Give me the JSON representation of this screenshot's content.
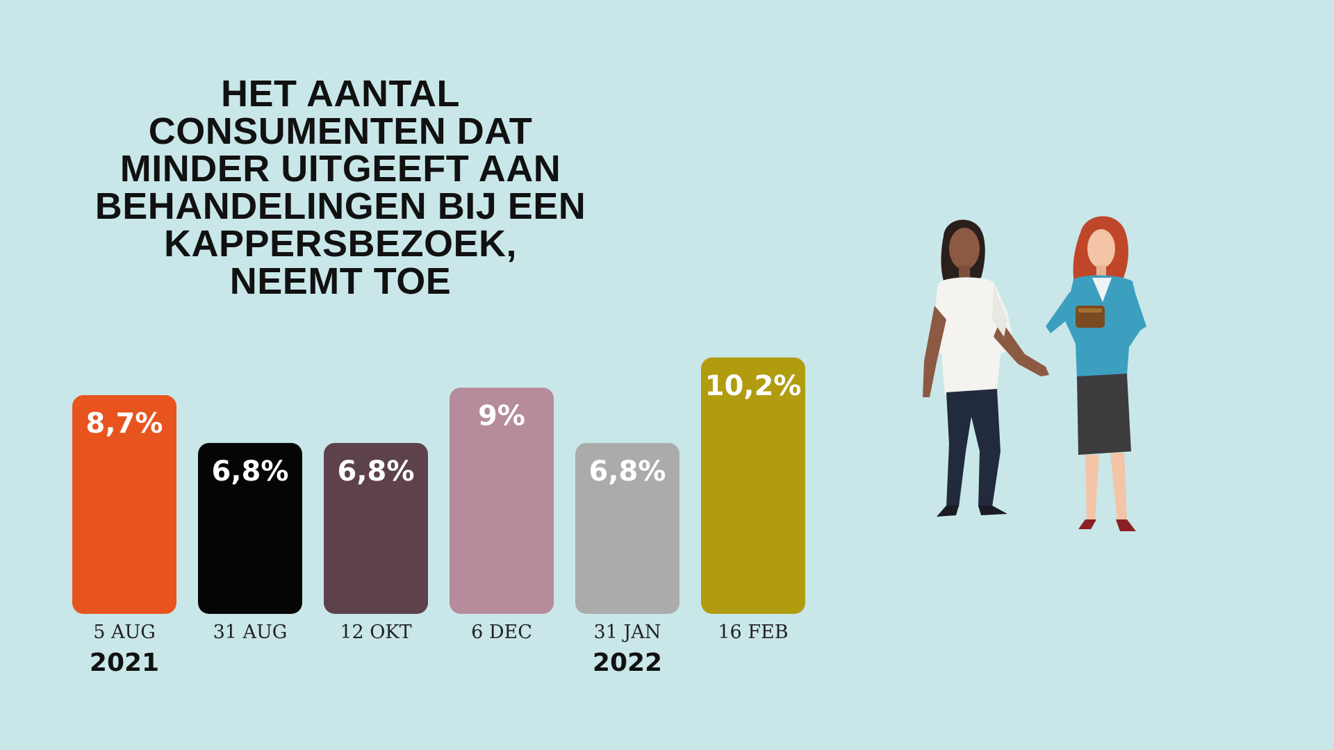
{
  "title_lines": [
    "HET AANTAL",
    "CONSUMENTEN DAT",
    "MINDER UITGEEFT AAN",
    "BEHANDELINGEN BIJ EEN",
    "KAPPERSBEZOEK,",
    "NEEMT TOE"
  ],
  "chart_data": {
    "type": "bar",
    "title": "HET AANTAL CONSUMENTEN DAT MINDER UITGEEFT AAN BEHANDELINGEN BIJ EEN KAPPERSBEZOEK, NEEMT TOE",
    "categories": [
      "5 AUG",
      "31 AUG",
      "12 OKT",
      "6 DEC",
      "31 JAN",
      "16 FEB"
    ],
    "values": [
      8.7,
      6.8,
      6.8,
      9.0,
      6.8,
      10.2
    ],
    "value_labels": [
      "8,7%",
      "6,8%",
      "6,8%",
      "9%",
      "6,8%",
      "10,2%"
    ],
    "year_labels": [
      {
        "text": "2021",
        "category": "5 AUG"
      },
      {
        "text": "2022",
        "category": "31 JAN"
      }
    ],
    "bar_colors": [
      "#e8541e",
      "#050505",
      "#5d424b",
      "#b68b9b",
      "#ababab",
      "#b19c10"
    ],
    "xlabel": "",
    "ylabel": "",
    "grid": false,
    "legend": "none"
  },
  "illustration": {
    "description_icon": "two-women-with-wallet-illustration"
  },
  "colors": {
    "background": "#c9e7e9"
  }
}
